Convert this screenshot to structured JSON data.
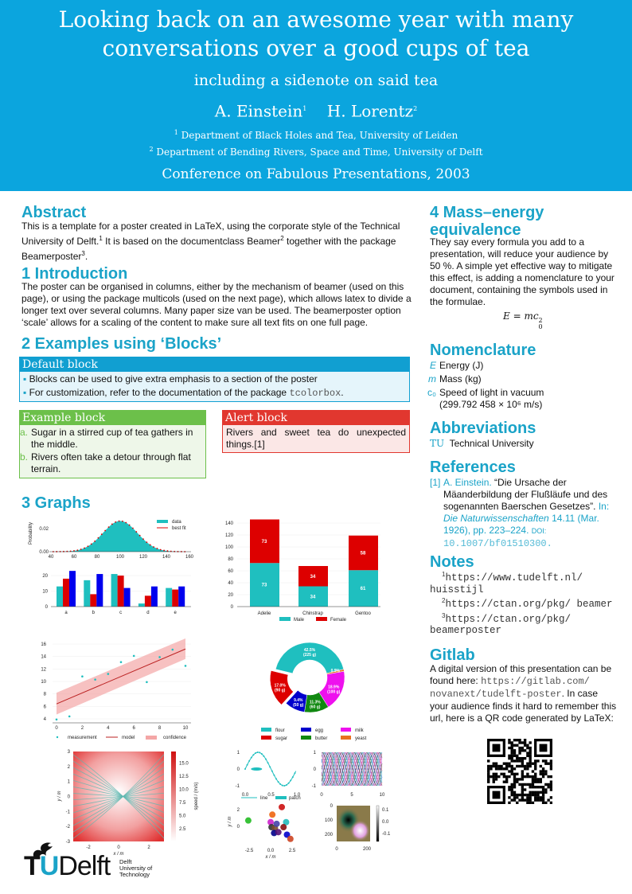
{
  "header": {
    "title_line1": "Looking back on an awesome year with many",
    "title_line2": "conversations over a good cups of tea",
    "subtitle": "including a sidenote on said tea",
    "author1": "A. Einstein",
    "author1_sup": "1",
    "author2": "H. Lorentz",
    "author2_sup": "2",
    "affil1_sup": "1",
    "affil1": "Department of Black Holes and Tea, University of Leiden",
    "affil2_sup": "2",
    "affil2": "Department of Bending Rivers, Space and Time, University of Delft",
    "conference": "Conference on Fabulous Presentations, 2003"
  },
  "colors": {
    "header": "#0ba5de",
    "heading": "#1aa3c8",
    "default_block": "#119fd1",
    "example_block": "#6cc04a",
    "alert_block": "#e1372f",
    "teal": "#1fbfbf",
    "red": "#dd0000",
    "blue": "#0000ee"
  },
  "abstract": {
    "title": "Abstract",
    "t1": "This is a template for a poster created in ",
    "latex": "LaTeX",
    "t2": ", using the corporate style of the Technical University of Delft.",
    "s1": "1",
    "t3": " It is based on the documentclass Beamer",
    "s2": "2",
    "t4": " together with the package Beamerposter",
    "s3": "3",
    "t5": "."
  },
  "intro": {
    "title": "1 Introduction",
    "text": "The poster can be organised in columns, either by the mechanism of beamer (used on this page), or using the package multicols (used on the next page), which allows latex to divide a longer text over several columns. Many paper size van be used. The beamerposter option ‘scale’ allows for a scaling of the content to make sure all text fits on one full page."
  },
  "examples": {
    "title": "2 Examples using ‘Blocks’",
    "default_block": {
      "title": "Default block",
      "item1": "Blocks can be used to give extra emphasis to a section of the poster",
      "item2": "For customization, refer to the documentation of the package ",
      "item2_code": "tcolorbox",
      "item2_end": "."
    },
    "example_block": {
      "title": "Example block",
      "items": [
        {
          "marker": "a.",
          "text": "Sugar in a stirred cup of tea gathers in the middle."
        },
        {
          "marker": "b.",
          "text": "Rivers often take a detour through flat terrain."
        }
      ]
    },
    "alert_block": {
      "title": "Alert block",
      "text": "Rivers and sweet tea do unexpected things.[1]"
    }
  },
  "graphs": {
    "title": "3 Graphs"
  },
  "mass": {
    "title": "4 Mass–energy equivalence",
    "text": "They say every formula you add to a presentation, will reduce your audience by 50 %. A simple yet effective way to mitigate this effect, is adding a nomenclature to your document, containing the symbols used in the formulae.",
    "formula": "E = mc",
    "formula_sup": "2",
    "formula_sub": "0"
  },
  "nomenclature": {
    "title": "Nomenclature",
    "items": [
      {
        "sym": "E",
        "desc": "Energy (J)"
      },
      {
        "sym": "m",
        "desc": "Mass (kg)"
      },
      {
        "sym": "c₀",
        "desc": "Speed of light in vacuum (299.792 458 × 10⁶ m/s)"
      }
    ]
  },
  "abbreviations": {
    "title": "Abbreviations",
    "items": [
      {
        "abbr": "TU",
        "desc": "Technical University"
      }
    ]
  },
  "references": {
    "title": "References",
    "items": [
      {
        "label": "[1]",
        "author": "A. Einstein.",
        "title": "“Die Ursache der Mäanderbildung der Flußläufe und des sogenannten Baerschen Gesetzes”.",
        "in": "In:",
        "journal": "Die Naturwissenschaften",
        "details": "14.11 (Mar. 1926), pp. 223–224.",
        "doi_label": "DOI:",
        "doi": "10.1007/bf01510300."
      }
    ]
  },
  "notes": {
    "title": "Notes",
    "items": [
      {
        "num": "1",
        "url": "https://www.tudelft.nl/ huisstijl"
      },
      {
        "num": "2",
        "url": "https://ctan.org/pkg/ beamer"
      },
      {
        "num": "3",
        "url": "https://ctan.org/pkg/ beamerposter"
      }
    ]
  },
  "gitlab": {
    "title": "Gitlab",
    "t1": "A digital version of this presentation can be found here: ",
    "url": "https://gitlab.com/ novanext/tudelft-poster",
    "t2": ". In case your audience finds it hard to remember this url, here is a QR code generated by ",
    "latex": "LaTeX",
    "t3": ":"
  },
  "logo": {
    "text_tu": "TU",
    "text_delft": "Delft",
    "sub1": "Delft",
    "sub2": "University of",
    "sub3": "Technology"
  },
  "chart_data": [
    {
      "type": "area",
      "ylabel": "Probability",
      "xticks": [
        40,
        60,
        80,
        100,
        120,
        140,
        160
      ],
      "yticks": [
        "0.00",
        "0.02"
      ],
      "xlim": [
        40,
        160
      ],
      "ylim": [
        0,
        0.027
      ],
      "series": [
        {
          "name": "data",
          "kind": "histogram",
          "mean": 100,
          "sd": 15
        },
        {
          "name": "best fit",
          "kind": "line",
          "mean": 100,
          "sd": 15
        }
      ],
      "legend": "top-right"
    },
    {
      "type": "bar",
      "categories": [
        "a",
        "b",
        "c",
        "d",
        "e"
      ],
      "series": [
        {
          "values": [
            13,
            17,
            21,
            2,
            12
          ]
        },
        {
          "values": [
            18,
            8,
            20,
            7,
            11
          ]
        },
        {
          "values": [
            23,
            21,
            12,
            13,
            13
          ]
        }
      ],
      "yticks": [
        0,
        10,
        20
      ],
      "ylim": [
        0,
        25
      ]
    },
    {
      "type": "bar",
      "stacked": true,
      "categories": [
        "Adelie",
        "Chinstrap",
        "Gentoo"
      ],
      "series": [
        {
          "name": "Male",
          "values": [
            73,
            34,
            61
          ]
        },
        {
          "name": "Female",
          "values": [
            73,
            34,
            58
          ]
        }
      ],
      "yticks": [
        0,
        20,
        40,
        60,
        80,
        100,
        120,
        140
      ],
      "ylim": [
        0,
        150
      ],
      "legend": "bottom"
    },
    {
      "type": "scatter",
      "x": [
        0,
        1,
        2,
        3,
        4,
        5,
        6,
        7,
        8,
        9,
        10
      ],
      "y": [
        3.9,
        4.4,
        10.8,
        10.3,
        11.2,
        13.1,
        14.1,
        9.9,
        13.9,
        15.1,
        12.5
      ],
      "model": [
        6.4,
        15.2
      ],
      "confidence_low": [
        4.7,
        13.6
      ],
      "confidence_high": [
        8.2,
        16.9
      ],
      "series_names": [
        "measurement",
        "model",
        "confidence"
      ],
      "xticks": [
        0,
        2,
        4,
        6,
        8,
        10
      ],
      "yticks": [
        4,
        6,
        8,
        10,
        12,
        14,
        16
      ],
      "xlim": [
        -0.5,
        10.5
      ],
      "ylim": [
        3.5,
        17
      ],
      "legend": "bottom"
    },
    {
      "type": "pie",
      "donut": true,
      "slices": [
        {
          "name": "flour",
          "label": "42.5%",
          "sub": "(225 g)",
          "value": 225
        },
        {
          "name": "yeast",
          "label": "0.9%",
          "sub": "(5 g)",
          "value": 5
        },
        {
          "name": "milk",
          "label": "18.9%",
          "sub": "(100 g)",
          "value": 100
        },
        {
          "name": "butter",
          "label": "11.3%",
          "sub": "(60 g)",
          "value": 60
        },
        {
          "name": "egg",
          "label": "9.4%",
          "sub": "(50 g)",
          "value": 50
        },
        {
          "name": "sugar",
          "label": "17.0%",
          "sub": "(90 g)",
          "value": 90,
          "exploded": true
        }
      ],
      "legend_order": [
        "flour",
        "egg",
        "milk",
        "sugar",
        "butter",
        "yeast"
      ],
      "legend": "bottom"
    },
    {
      "type": "heatmap",
      "kind": "streamplot",
      "xlabel": "x / m",
      "ylabel": "y / m",
      "xticks": [
        -2,
        0,
        2
      ],
      "yticks": [
        -3,
        -2,
        -1,
        0,
        1,
        2,
        3
      ],
      "colorbar_label": "speed / (m/s)",
      "colorbar_ticks": [
        "2.5",
        "5.0",
        "7.5",
        "10.0",
        "12.5",
        "15.0"
      ]
    },
    {
      "type": "line",
      "series": [
        {
          "name": "line"
        },
        {
          "name": "patch"
        }
      ],
      "xticks": [
        "0.0",
        "0.5",
        "1.0"
      ],
      "yticks": [
        "-1",
        "0",
        "1"
      ],
      "legend": "bottom"
    },
    {
      "type": "line",
      "kind": "many sinusoids",
      "xticks": [
        "0",
        "5",
        "10"
      ],
      "yticks": [
        "-1",
        "0",
        "1"
      ]
    },
    {
      "type": "scatter",
      "xlabel": "x / m",
      "ylabel": "y / m",
      "xticks": [
        "-2.5",
        "0.0",
        "2.5"
      ],
      "yticks": [
        "0",
        "2"
      ]
    },
    {
      "type": "heatmap",
      "xticks": [
        "0",
        "200"
      ],
      "yticks": [
        "0",
        "100",
        "200"
      ],
      "colorbar_ticks": [
        "0.1",
        "0.0",
        "-0.1"
      ]
    }
  ]
}
